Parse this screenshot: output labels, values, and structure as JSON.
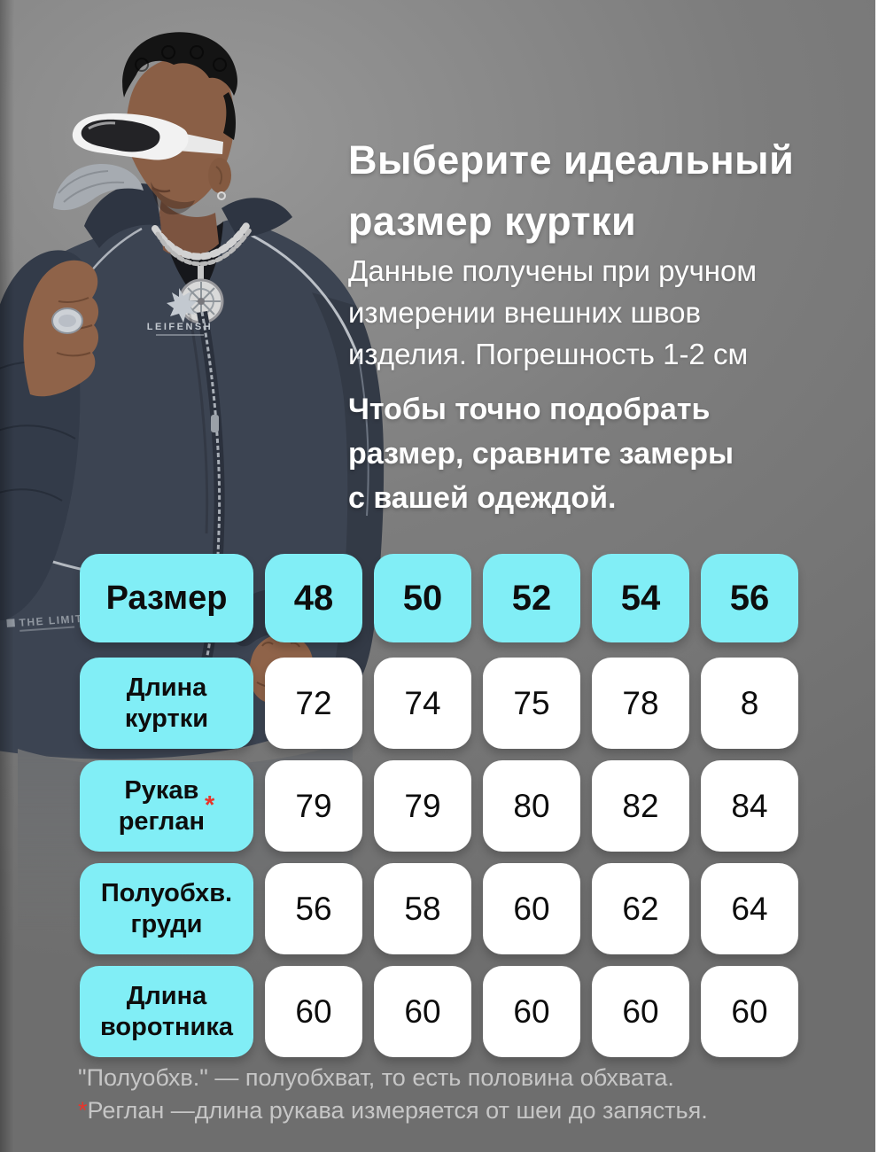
{
  "page": {
    "background_gray": "#7d7d7d",
    "accent_cyan": "#81eef6",
    "accent_red": "#e8352b",
    "right_strip_color": "#ffffff"
  },
  "header": {
    "title": "Выберите идеальный\nразмер куртки",
    "subtitle": "Данные получены при ручном\nизмерении внешних швов\nизделия. Погрешность 1-2 см",
    "emphasis": "Чтобы точно подобрать\nразмер, сравните замеры\nс вашей одеждой."
  },
  "photo": {
    "description": "man in dark navy jacket with white sport sunglasses, silver chain and medallion",
    "jacket_logo_text": "LEIFENSH",
    "jacket_hem_text": "THE LIMIT"
  },
  "size_table": {
    "header_label": "Размер",
    "sizes": [
      "48",
      "50",
      "52",
      "54",
      "56"
    ],
    "rows": [
      {
        "label": "Длина\nкуртки",
        "note_mark": "",
        "values": [
          "72",
          "74",
          "75",
          "78",
          "8"
        ]
      },
      {
        "label": "Рукав\nреглан",
        "note_mark": "*",
        "values": [
          "79",
          "79",
          "80",
          "82",
          "84"
        ]
      },
      {
        "label": "Полуобхв.\nгруди",
        "note_mark": "",
        "values": [
          "56",
          "58",
          "60",
          "62",
          "64"
        ]
      },
      {
        "label": "Длина\nворотника",
        "note_mark": "",
        "values": [
          "60",
          "60",
          "60",
          "60",
          "60"
        ]
      }
    ]
  },
  "footnotes": [
    {
      "prefix": "",
      "text": "\"Полуобхв.\" — полуобхват, то есть половина обхвата."
    },
    {
      "prefix": "*",
      "text": "Реглан —длина рукава измеряется от шеи до запястья."
    }
  ]
}
